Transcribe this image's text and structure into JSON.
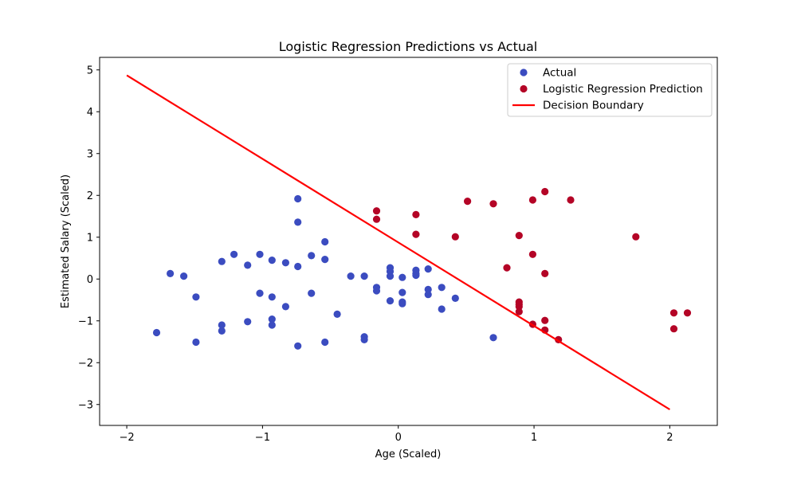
{
  "chart_data": {
    "type": "scatter",
    "title": "Logistic Regression Predictions vs Actual",
    "xlabel": "Age (Scaled)",
    "ylabel": "Estimated Salary (Scaled)",
    "xlim": [
      -2.2,
      2.35
    ],
    "ylim": [
      -3.5,
      5.3
    ],
    "xticks": [
      -2,
      -1,
      0,
      1,
      2
    ],
    "xtick_labels": [
      "−2",
      "−1",
      "0",
      "1",
      "2"
    ],
    "yticks": [
      -3,
      -2,
      -1,
      0,
      1,
      2,
      3,
      4,
      5
    ],
    "ytick_labels": [
      "−3",
      "−2",
      "−1",
      "0",
      "1",
      "2",
      "3",
      "4",
      "5"
    ],
    "grid": false,
    "legend_position": "top-right",
    "series": [
      {
        "name": "Actual",
        "kind": "scatter",
        "color": "#3b4cc0",
        "points": [
          [
            -1.78,
            -1.28
          ],
          [
            -1.68,
            0.13
          ],
          [
            -1.58,
            0.07
          ],
          [
            -1.49,
            -0.43
          ],
          [
            -1.49,
            -1.51
          ],
          [
            -1.3,
            0.42
          ],
          [
            -1.3,
            -1.1
          ],
          [
            -1.3,
            -1.24
          ],
          [
            -1.21,
            0.59
          ],
          [
            -1.11,
            0.33
          ],
          [
            -1.11,
            -1.02
          ],
          [
            -1.02,
            0.59
          ],
          [
            -1.02,
            -0.34
          ],
          [
            -0.93,
            0.45
          ],
          [
            -0.93,
            -0.43
          ],
          [
            -0.93,
            -0.96
          ],
          [
            -0.93,
            -1.1
          ],
          [
            -0.83,
            0.39
          ],
          [
            -0.83,
            -0.66
          ],
          [
            -0.74,
            1.92
          ],
          [
            -0.74,
            1.36
          ],
          [
            -0.74,
            0.3
          ],
          [
            -0.74,
            -1.6
          ],
          [
            -0.64,
            0.56
          ],
          [
            -0.64,
            -0.34
          ],
          [
            -0.54,
            0.89
          ],
          [
            -0.54,
            0.47
          ],
          [
            -0.54,
            -1.51
          ],
          [
            -0.45,
            -0.84
          ],
          [
            -0.35,
            0.07
          ],
          [
            -0.25,
            0.07
          ],
          [
            -0.25,
            -1.38
          ],
          [
            -0.25,
            -1.45
          ],
          [
            -0.16,
            -0.2
          ],
          [
            -0.16,
            -0.28
          ],
          [
            -0.06,
            0.27
          ],
          [
            -0.06,
            0.18
          ],
          [
            -0.06,
            0.07
          ],
          [
            -0.06,
            -0.52
          ],
          [
            0.03,
            0.04
          ],
          [
            0.03,
            -0.32
          ],
          [
            0.03,
            -0.55
          ],
          [
            0.03,
            -0.59
          ],
          [
            0.13,
            0.21
          ],
          [
            0.13,
            0.13
          ],
          [
            0.13,
            0.09
          ],
          [
            0.22,
            0.24
          ],
          [
            0.22,
            -0.25
          ],
          [
            0.22,
            -0.37
          ],
          [
            0.32,
            -0.2
          ],
          [
            0.32,
            -0.72
          ],
          [
            0.42,
            -0.46
          ],
          [
            0.7,
            -1.4
          ]
        ]
      },
      {
        "name": "Logistic Regression Prediction",
        "kind": "scatter",
        "color": "#b40426",
        "points": [
          [
            -0.16,
            1.63
          ],
          [
            -0.16,
            1.43
          ],
          [
            0.13,
            1.54
          ],
          [
            0.13,
            1.07
          ],
          [
            0.42,
            1.01
          ],
          [
            0.51,
            1.86
          ],
          [
            0.7,
            1.8
          ],
          [
            0.8,
            0.27
          ],
          [
            0.89,
            1.04
          ],
          [
            0.89,
            -0.55
          ],
          [
            0.89,
            -0.61
          ],
          [
            0.89,
            -0.66
          ],
          [
            0.89,
            -0.78
          ],
          [
            0.99,
            1.89
          ],
          [
            0.99,
            0.59
          ],
          [
            0.99,
            -1.08
          ],
          [
            1.08,
            2.09
          ],
          [
            1.08,
            0.13
          ],
          [
            1.08,
            -0.99
          ],
          [
            1.08,
            -1.22
          ],
          [
            1.18,
            -1.45
          ],
          [
            1.27,
            1.89
          ],
          [
            1.75,
            1.01
          ],
          [
            2.03,
            -0.81
          ],
          [
            2.03,
            -1.19
          ],
          [
            2.13,
            -0.81
          ]
        ]
      },
      {
        "name": "Decision Boundary",
        "kind": "line",
        "color": "#ff0000",
        "points": [
          [
            -2.0,
            4.87
          ],
          [
            2.0,
            -3.12
          ]
        ]
      }
    ]
  }
}
